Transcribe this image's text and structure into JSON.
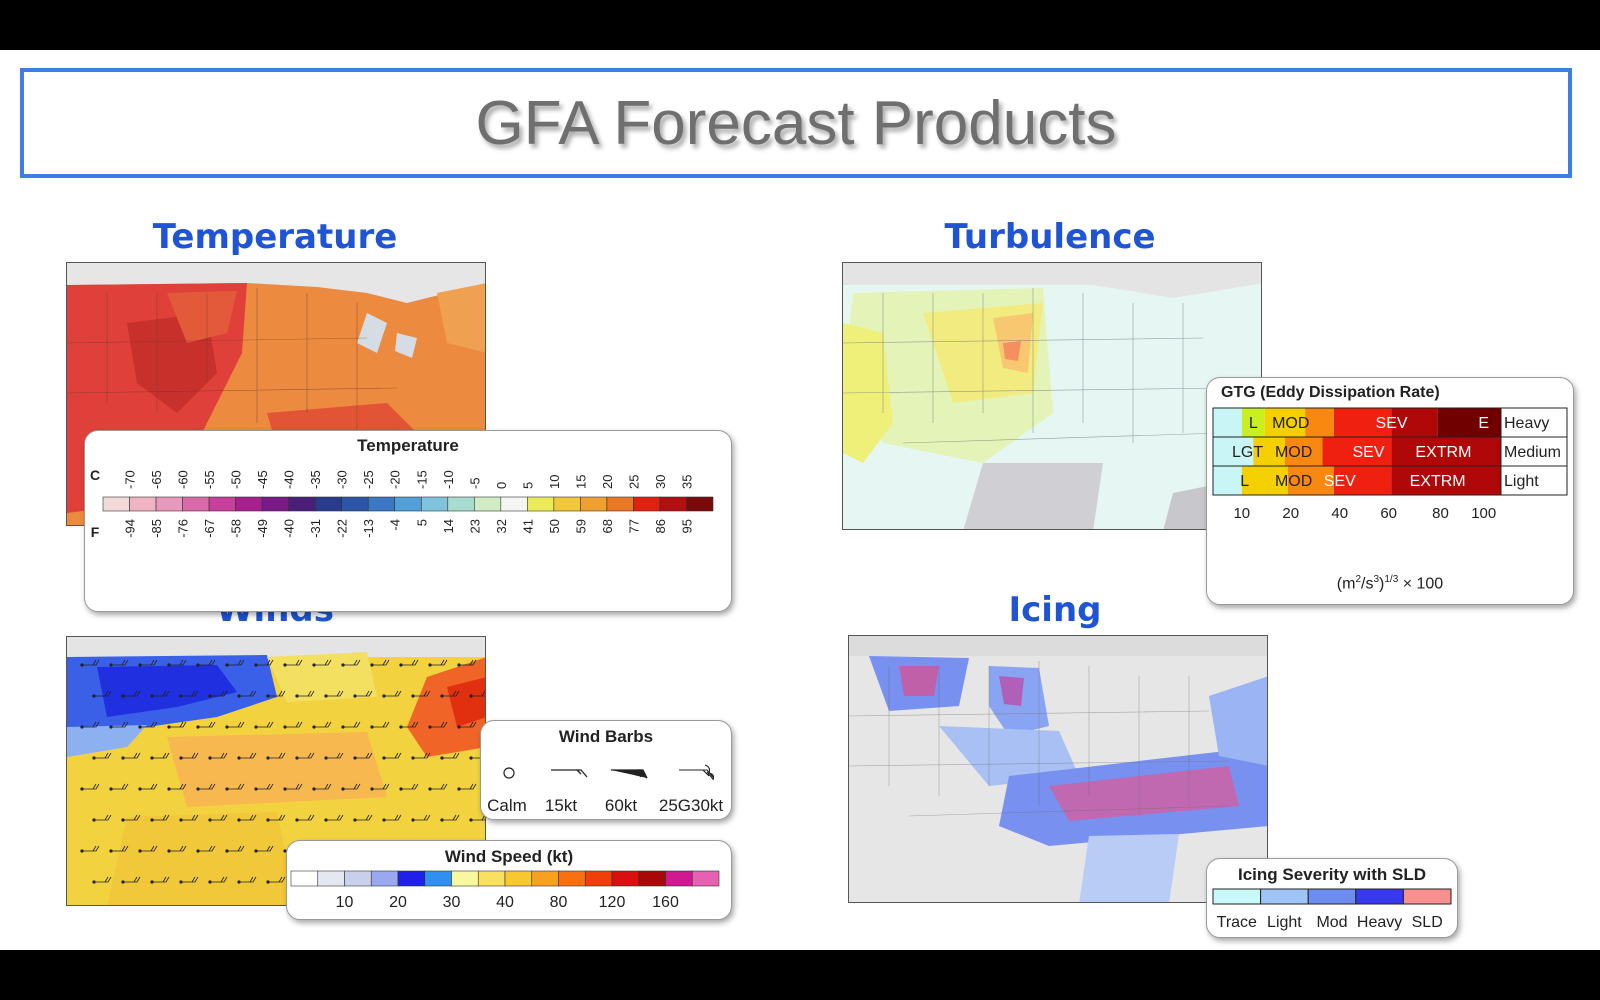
{
  "slide_title": "GFA Forecast Products",
  "sections": {
    "temperature": "Temperature",
    "turbulence": "Turbulence",
    "winds": "Winds",
    "icing": "Icing"
  },
  "temperature_legend": {
    "title": "Temperature",
    "c_label": "C",
    "f_label": "F",
    "celsius": [
      "-70",
      "-65",
      "-60",
      "-55",
      "-50",
      "-45",
      "-40",
      "-35",
      "-30",
      "-25",
      "-20",
      "-15",
      "-10",
      "-5",
      "0",
      "5",
      "10",
      "15",
      "20",
      "25",
      "30",
      "35"
    ],
    "fahrenheit": [
      "-94",
      "-85",
      "-76",
      "-67",
      "-58",
      "-49",
      "-40",
      "-31",
      "-22",
      "-13",
      "-4",
      "5",
      "14",
      "23",
      "32",
      "41",
      "50",
      "59",
      "68",
      "77",
      "86",
      "95"
    ],
    "colors": [
      "#f2d9d9",
      "#f0b3c4",
      "#e898b8",
      "#d86aa8",
      "#c9409c",
      "#a8208e",
      "#7a1a86",
      "#4a1f7a",
      "#2a3a8c",
      "#2b55a6",
      "#3a78c4",
      "#52a0d8",
      "#7fc4dc",
      "#a8dcd0",
      "#cfecc4",
      "#f4f6f2",
      "#ecec58",
      "#f0c83a",
      "#f0a030",
      "#e87824",
      "#e02010",
      "#b01010",
      "#7a0a0a"
    ]
  },
  "turbulence_legend": {
    "title": "GTG (Eddy Dissipation Rate)",
    "rows": [
      {
        "label": "Heavy",
        "cells": [
          "L",
          "MOD",
          "SEV",
          "E"
        ]
      },
      {
        "label": "Medium",
        "cells": [
          "LGT",
          "MOD",
          "SEV",
          "EXTRM"
        ]
      },
      {
        "label": "Light",
        "cells": [
          "L",
          "MOD",
          "SEV",
          "EXTRM"
        ]
      }
    ],
    "ticks": [
      "10",
      "20",
      "40",
      "60",
      "80",
      "100"
    ],
    "unit_main": "(m",
    "unit_sup1": "2",
    "unit_mid": "/s",
    "unit_sup2": "3",
    "unit_close": ")",
    "unit_sup3": "1/3",
    "unit_tail": " × 100",
    "colors": {
      "cyan": "#c8f6f6",
      "lime": "#c8f020",
      "yellow": "#f4d000",
      "orange": "#f88810",
      "red": "#f02010",
      "darkred": "#b00808",
      "maroon": "#700000"
    }
  },
  "wind_barbs": {
    "title": "Wind Barbs",
    "labels": [
      "Calm",
      "15kt",
      "60kt",
      "25G30kt"
    ]
  },
  "wind_speed": {
    "title": "Wind Speed (kt)",
    "ticks": [
      "10",
      "20",
      "30",
      "40",
      "80",
      "120",
      "160"
    ],
    "colors": [
      "#ffffff",
      "#e4e8f0",
      "#c8d0ec",
      "#9aa8f0",
      "#2020e8",
      "#3090f0",
      "#f8f8a0",
      "#f8e060",
      "#f8c830",
      "#f8a020",
      "#f87010",
      "#f04008",
      "#d81010",
      "#a80808",
      "#d01890",
      "#e860b0"
    ]
  },
  "icing_legend": {
    "title": "Icing Severity with SLD",
    "labels": [
      "Trace",
      "Light",
      "Mod",
      "Heavy",
      "SLD"
    ],
    "colors": [
      "#c8f8f8",
      "#a0c4f8",
      "#6c8cf0",
      "#3838f0",
      "#f89090"
    ]
  }
}
